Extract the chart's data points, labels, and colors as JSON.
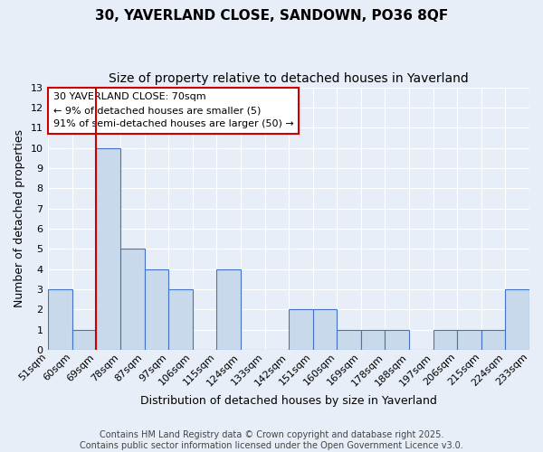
{
  "title": "30, YAVERLAND CLOSE, SANDOWN, PO36 8QF",
  "subtitle": "Size of property relative to detached houses in Yaverland",
  "xlabel": "Distribution of detached houses by size in Yaverland",
  "ylabel": "Number of detached properties",
  "bin_labels": [
    "51sqm",
    "60sqm",
    "69sqm",
    "78sqm",
    "87sqm",
    "97sqm",
    "106sqm",
    "115sqm",
    "124sqm",
    "133sqm",
    "142sqm",
    "151sqm",
    "160sqm",
    "169sqm",
    "178sqm",
    "188sqm",
    "197sqm",
    "206sqm",
    "215sqm",
    "224sqm",
    "233sqm"
  ],
  "bar_values": [
    3,
    1,
    10,
    5,
    4,
    3,
    0,
    4,
    0,
    0,
    2,
    2,
    1,
    1,
    1,
    0,
    1,
    1,
    1,
    3
  ],
  "bar_color": "#c9d9ec",
  "bar_edge_color": "#4472c4",
  "highlight_bar_index": 2,
  "annotation_line1": "30 YAVERLAND CLOSE: 70sqm",
  "annotation_line2": "← 9% of detached houses are smaller (5)",
  "annotation_line3": "91% of semi-detached houses are larger (50) →",
  "annotation_box_color": "#ffffff",
  "annotation_box_edge_color": "#cc0000",
  "ylim": [
    0,
    13
  ],
  "yticks": [
    0,
    1,
    2,
    3,
    4,
    5,
    6,
    7,
    8,
    9,
    10,
    11,
    12,
    13
  ],
  "bg_color": "#e8eef7",
  "grid_color": "#ffffff",
  "footer_line1": "Contains HM Land Registry data © Crown copyright and database right 2025.",
  "footer_line2": "Contains public sector information licensed under the Open Government Licence v3.0.",
  "title_fontsize": 11,
  "subtitle_fontsize": 10,
  "axis_label_fontsize": 9,
  "tick_fontsize": 8,
  "annotation_fontsize": 8,
  "footer_fontsize": 7
}
